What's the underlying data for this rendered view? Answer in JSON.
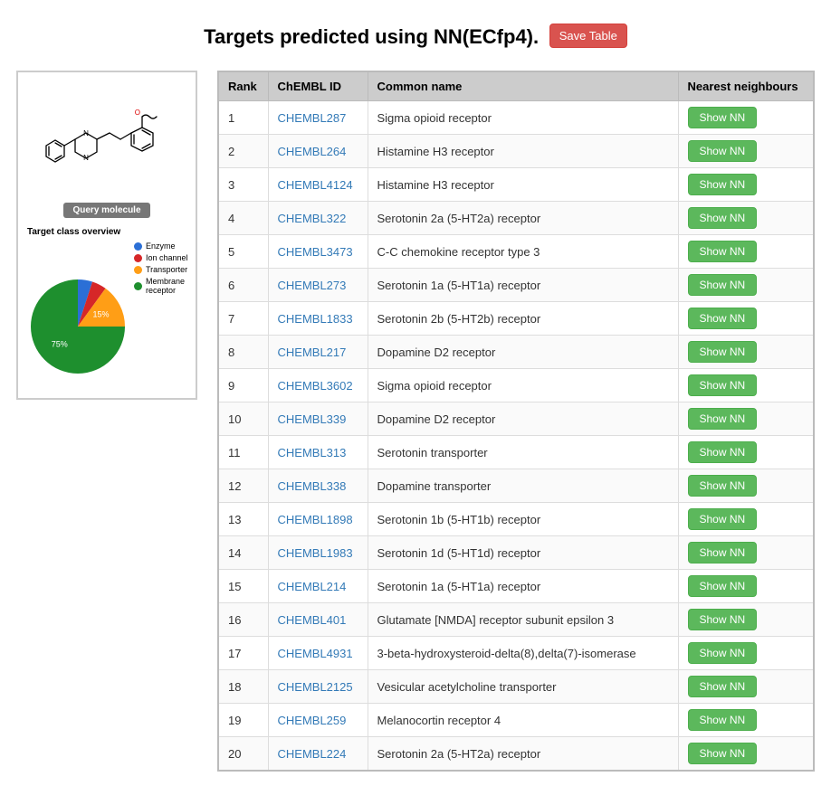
{
  "header": {
    "title": "Targets predicted using NN(ECfp4).",
    "save_button_label": "Save Table"
  },
  "sidebar": {
    "query_badge": "Query molecule",
    "chart_title": "Target class overview",
    "pie": {
      "type": "pie",
      "background_color": "#ffffff",
      "label_fontsize": 9,
      "label_color": "#ffffff",
      "slices": [
        {
          "name": "Enzyme",
          "percent": 5,
          "color": "#2b6fd6",
          "show_label": false
        },
        {
          "name": "Ion channel",
          "percent": 5,
          "color": "#d62728",
          "show_label": false
        },
        {
          "name": "Transporter",
          "percent": 15,
          "color": "#ff9e16",
          "show_label": true
        },
        {
          "name": "Membrane receptor",
          "percent": 75,
          "color": "#1e8f2e",
          "show_label": true
        }
      ]
    },
    "legend_items": [
      {
        "label": "Enzyme",
        "color": "#2b6fd6"
      },
      {
        "label": "Ion channel",
        "color": "#d62728"
      },
      {
        "label": "Transporter",
        "color": "#ff9e16"
      },
      {
        "label": "Membrane receptor",
        "color": "#1e8f2e"
      }
    ]
  },
  "table": {
    "columns": {
      "rank": "Rank",
      "chembl_id": "ChEMBL ID",
      "common_name": "Common name",
      "nearest_neighbours": "Nearest neighbours"
    },
    "nn_button_label": "Show NN",
    "link_color": "#337ab7",
    "button_color": "#5cb85c",
    "rows": [
      {
        "rank": 1,
        "id": "CHEMBL287",
        "name": "Sigma opioid receptor"
      },
      {
        "rank": 2,
        "id": "CHEMBL264",
        "name": "Histamine H3 receptor"
      },
      {
        "rank": 3,
        "id": "CHEMBL4124",
        "name": "Histamine H3 receptor"
      },
      {
        "rank": 4,
        "id": "CHEMBL322",
        "name": "Serotonin 2a (5-HT2a) receptor"
      },
      {
        "rank": 5,
        "id": "CHEMBL3473",
        "name": "C-C chemokine receptor type 3"
      },
      {
        "rank": 6,
        "id": "CHEMBL273",
        "name": "Serotonin 1a (5-HT1a) receptor"
      },
      {
        "rank": 7,
        "id": "CHEMBL1833",
        "name": "Serotonin 2b (5-HT2b) receptor"
      },
      {
        "rank": 8,
        "id": "CHEMBL217",
        "name": "Dopamine D2 receptor"
      },
      {
        "rank": 9,
        "id": "CHEMBL3602",
        "name": "Sigma opioid receptor"
      },
      {
        "rank": 10,
        "id": "CHEMBL339",
        "name": "Dopamine D2 receptor"
      },
      {
        "rank": 11,
        "id": "CHEMBL313",
        "name": "Serotonin transporter"
      },
      {
        "rank": 12,
        "id": "CHEMBL338",
        "name": "Dopamine transporter"
      },
      {
        "rank": 13,
        "id": "CHEMBL1898",
        "name": "Serotonin 1b (5-HT1b) receptor"
      },
      {
        "rank": 14,
        "id": "CHEMBL1983",
        "name": "Serotonin 1d (5-HT1d) receptor"
      },
      {
        "rank": 15,
        "id": "CHEMBL214",
        "name": "Serotonin 1a (5-HT1a) receptor"
      },
      {
        "rank": 16,
        "id": "CHEMBL401",
        "name": "Glutamate [NMDA] receptor subunit epsilon 3"
      },
      {
        "rank": 17,
        "id": "CHEMBL4931",
        "name": "3-beta-hydroxysteroid-delta(8),delta(7)-isomerase"
      },
      {
        "rank": 18,
        "id": "CHEMBL2125",
        "name": "Vesicular acetylcholine transporter"
      },
      {
        "rank": 19,
        "id": "CHEMBL259",
        "name": "Melanocortin receptor 4"
      },
      {
        "rank": 20,
        "id": "CHEMBL224",
        "name": "Serotonin 2a (5-HT2a) receptor"
      }
    ]
  }
}
